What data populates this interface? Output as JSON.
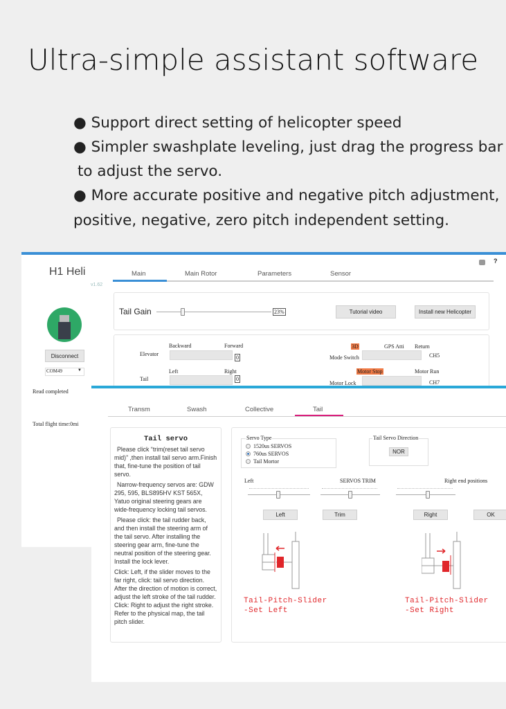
{
  "heading": "Ultra-simple assistant software",
  "bullets": [
    "● Support direct setting of helicopter speed",
    "● Simpler swashplate leveling, just drag the progress bar",
    "to adjust the servo.",
    "● More accurate positive and negative pitch adjustment,",
    "positive, negative, zero pitch independent setting."
  ],
  "app": {
    "name": "H1 Heli",
    "version": "v1.62",
    "top_icons": [
      "shirt-icon",
      "help-icon"
    ],
    "help_label": "?",
    "disconnect": "Disconnect",
    "port": "COM49",
    "status": "Read completed",
    "flight_time": "Total flight time:0mi",
    "tabs": [
      "Main",
      "Main Rotor",
      "Parameters",
      "Sensor"
    ],
    "active_tab": "Main",
    "tail_gain": {
      "label": "Tail Gain",
      "value": "23%",
      "percent": 23
    },
    "tutorial": "Tutorial video",
    "install": "Install new Helicopter",
    "elevator": {
      "label": "Elevator",
      "left": "Backward",
      "right": "Forward",
      "value": "0"
    },
    "tail": {
      "label": "Tail",
      "left": "Left",
      "right": "Right",
      "value": "0"
    },
    "mode": {
      "label": "Mode Switch",
      "opts": [
        "3D",
        "GPS Atti",
        "Return"
      ],
      "active": "3D",
      "channel": "CH5"
    },
    "lock": {
      "label": "Motor Lock",
      "opts": [
        "Motor Stop",
        "Motor Run"
      ],
      "active": "Motor Stop",
      "channel": "CH7"
    },
    "highlight_color": "#f07a45"
  },
  "sub": {
    "tabs": [
      "Transm",
      "Swash",
      "Collective",
      "Tail"
    ],
    "active_tab": "Tail",
    "accent": "#d81b7a",
    "help_title": "Tail servo",
    "help": [
      "Please click “trim(reset tail servo mid)” ,then install tail servo arm.Finish that, fine-tune the position of tail servo.",
      "Narrow-frequency servos are: GDW 295, 595, BLS895HV KST 565X, Yatuo original steering gears are wide-frequency locking tail servos.",
      "Please click: the tail rudder back, and then install the steering arm of the tail servo. After installing the steering gear arm, fine-tune the neutral position of the steering gear. Install the lock lever.",
      "Click: Left, if the slider moves to the far right, click: tail servo direction. After the direction of motion is correct, adjust the left stroke of the tail rudder. Click: Right to adjust the right stroke. Refer to the physical map, the tail pitch slider."
    ],
    "servo_type": {
      "label": "Servo Type",
      "options": [
        "1520us SERVOS",
        "760us SERVOS",
        "Tail Mortor"
      ],
      "selected": "760us SERVOS"
    },
    "direction": {
      "label": "Tail Servo Direction",
      "button": "NOR"
    },
    "sliders": {
      "left": "Left",
      "center": "SERVOS TRIM",
      "right": "Right end positions"
    },
    "buttons": [
      "Left",
      "Trim",
      "Right",
      "OK"
    ],
    "diagram_left": [
      "Tail-Pitch-Slider",
      "-Set  Left"
    ],
    "diagram_right": [
      "Tail-Pitch-Slider",
      "-Set  Right"
    ]
  }
}
